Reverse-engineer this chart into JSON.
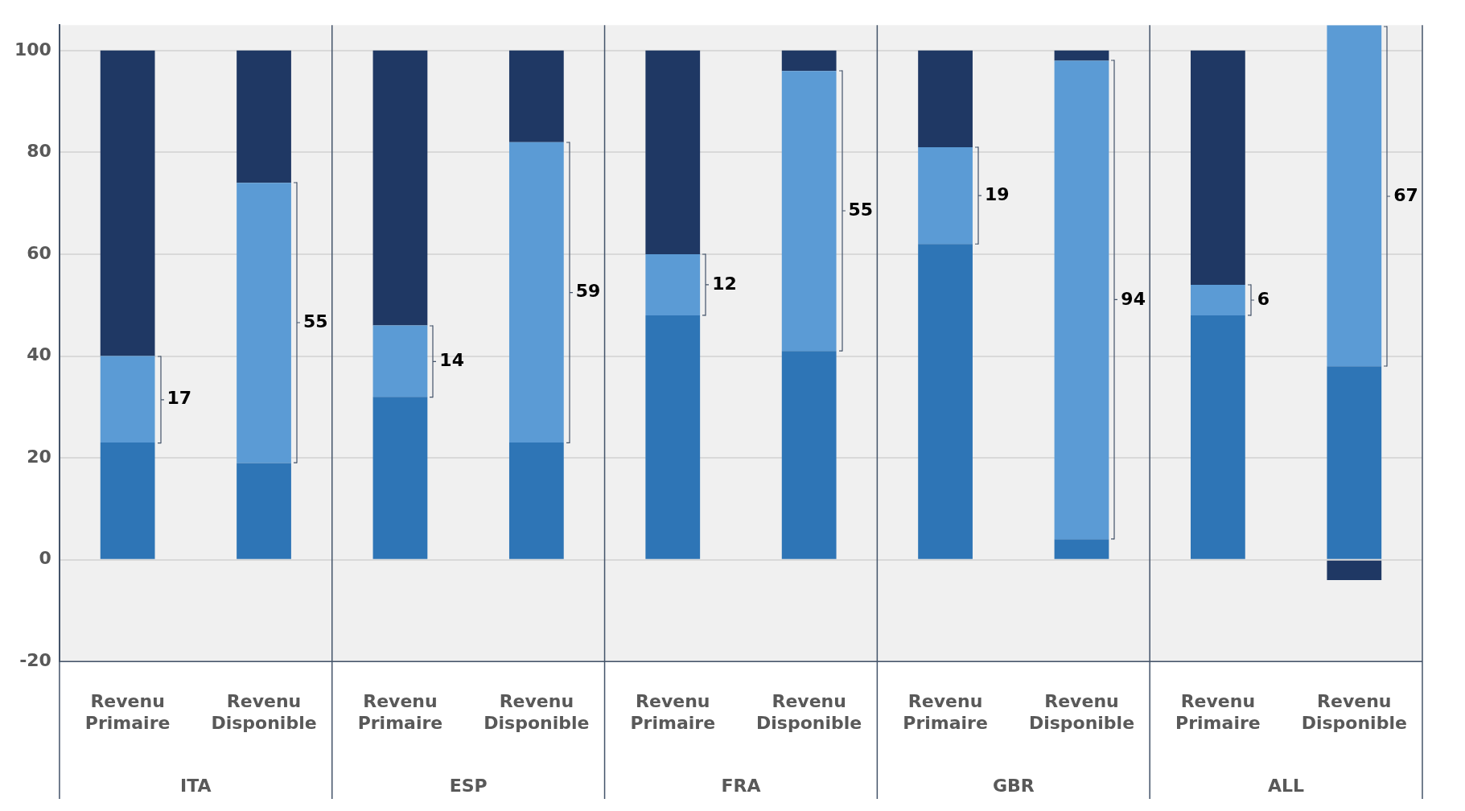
{
  "chart_data": {
    "type": "bar",
    "stacked": true,
    "categories": [
      "Revenu Primaire",
      "Revenu Disponible",
      "Revenu Primaire",
      "Revenu Disponible",
      "Revenu Primaire",
      "Revenu Disponible",
      "Revenu Primaire",
      "Revenu Disponible",
      "Revenu Primaire",
      "Revenu Disponible"
    ],
    "annotations": [
      "ITA",
      "ESP",
      "FRA",
      "GBR",
      "ALL"
    ],
    "series": [
      {
        "color": "#2e75b6",
        "values": [
          23,
          19,
          32,
          23,
          48,
          41,
          62,
          4,
          48,
          38
        ]
      },
      {
        "color": "#5b9bd5",
        "values": [
          17,
          55,
          14,
          59,
          12,
          55,
          19,
          94,
          6,
          67
        ],
        "value_labels": [
          "17",
          "55",
          "14",
          "59",
          "12",
          "55",
          "19",
          "94",
          "6",
          "67"
        ]
      },
      {
        "color": "#1f3864",
        "values": [
          60,
          26,
          54,
          18,
          40,
          4,
          19,
          2,
          46,
          -4
        ]
      }
    ],
    "ylim": [
      -20,
      105
    ],
    "yticks": [
      -20,
      0,
      20,
      40,
      60,
      80,
      100
    ],
    "grid": "y",
    "legend": false
  }
}
